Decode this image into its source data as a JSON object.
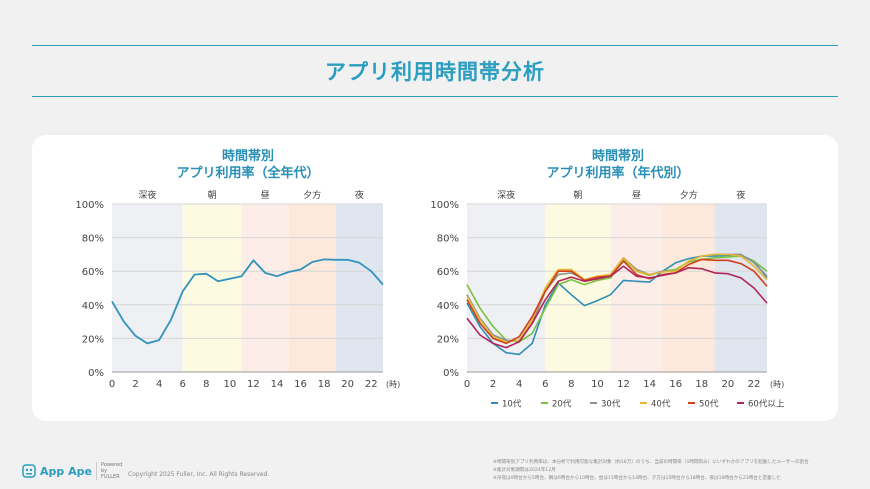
{
  "page_title": "アプリ利用時間帯分析",
  "chart_data": [
    {
      "type": "line",
      "title_line1": "時間帯別",
      "title_line2": "アプリ利用率（全年代）",
      "x": [
        0,
        1,
        2,
        3,
        4,
        5,
        6,
        7,
        8,
        9,
        10,
        11,
        12,
        13,
        14,
        15,
        16,
        17,
        18,
        19,
        20,
        21,
        22,
        23
      ],
      "x_ticks": [
        "0",
        "2",
        "4",
        "6",
        "8",
        "10",
        "12",
        "14",
        "16",
        "18",
        "20",
        "22"
      ],
      "x_unit": "(時)",
      "y_ticks": [
        "0%",
        "20%",
        "40%",
        "60%",
        "80%",
        "100%"
      ],
      "ylim": [
        0,
        100
      ],
      "grid": true,
      "bands": [
        {
          "label": "深夜",
          "from": 0,
          "to": 6,
          "color": "#eef0f3"
        },
        {
          "label": "朝",
          "from": 6,
          "to": 11,
          "color": "#fcfbe1"
        },
        {
          "label": "昼",
          "from": 11,
          "to": 15,
          "color": "#fcede8"
        },
        {
          "label": "夕方",
          "from": 15,
          "to": 19,
          "color": "#fde9db"
        },
        {
          "label": "夜",
          "from": 19,
          "to": 23,
          "color": "#dfe6ef"
        }
      ],
      "series": [
        {
          "color": "#2f93bd",
          "values": [
            42,
            30,
            21.5,
            17,
            19,
            31,
            48,
            58,
            58.5,
            54,
            55.5,
            57,
            66.5,
            59,
            57,
            59.5,
            61,
            65.5,
            67,
            66.8,
            66.8,
            65,
            60,
            52
          ]
        }
      ]
    },
    {
      "type": "line",
      "title_line1": "時間帯別",
      "title_line2": "アプリ利用率（年代別）",
      "x": [
        0,
        1,
        2,
        3,
        4,
        5,
        6,
        7,
        8,
        9,
        10,
        11,
        12,
        13,
        14,
        15,
        16,
        17,
        18,
        19,
        20,
        21,
        22,
        23
      ],
      "x_ticks": [
        "0",
        "2",
        "4",
        "6",
        "8",
        "10",
        "12",
        "14",
        "16",
        "18",
        "20",
        "22"
      ],
      "x_unit": "(時)",
      "y_ticks": [
        "0%",
        "20%",
        "40%",
        "60%",
        "80%",
        "100%"
      ],
      "ylim": [
        0,
        100
      ],
      "grid": true,
      "legend_position": "bottom",
      "bands": [
        {
          "label": "深夜",
          "from": 0,
          "to": 6,
          "color": "#eef0f3"
        },
        {
          "label": "朝",
          "from": 6,
          "to": 11,
          "color": "#fcfbe1"
        },
        {
          "label": "昼",
          "from": 11,
          "to": 15,
          "color": "#fcede8"
        },
        {
          "label": "夕方",
          "from": 15,
          "to": 19,
          "color": "#fde9db"
        },
        {
          "label": "夜",
          "from": 19,
          "to": 23,
          "color": "#dfe6ef"
        }
      ],
      "series": [
        {
          "name": "10代",
          "color": "#2f8fb8",
          "values": [
            41,
            27,
            17,
            11.5,
            10.5,
            17,
            40,
            53,
            46,
            39.5,
            42.5,
            46,
            54.5,
            54,
            53.5,
            60,
            65,
            67.5,
            69,
            69,
            69.5,
            69.5,
            66,
            56
          ]
        },
        {
          "name": "20代",
          "color": "#7ac142",
          "values": [
            52,
            38,
            27,
            19,
            18,
            23,
            38,
            52,
            55,
            52,
            54.5,
            56,
            67,
            60,
            57.5,
            60,
            61,
            65.5,
            67,
            68,
            68.5,
            69,
            66,
            60
          ]
        },
        {
          "name": "30代",
          "color": "#8d9299",
          "values": [
            46,
            32,
            22,
            19,
            18,
            29,
            48,
            58,
            59,
            55,
            56.5,
            58,
            68,
            61,
            58,
            60,
            60,
            66,
            69,
            70,
            70,
            70,
            65,
            57
          ]
        },
        {
          "name": "40代",
          "color": "#e6b832",
          "values": [
            45,
            31,
            21,
            18,
            19,
            31,
            50,
            61,
            61,
            55,
            57,
            58,
            68,
            60,
            58,
            59.5,
            60,
            66,
            69,
            70,
            70,
            69,
            63,
            55
          ]
        },
        {
          "name": "50代",
          "color": "#d2401a",
          "values": [
            43,
            29,
            20,
            17,
            21,
            33,
            48,
            60,
            60,
            54.5,
            56.5,
            57,
            66,
            58,
            55.5,
            58,
            59,
            64,
            67,
            66.5,
            66.5,
            64.5,
            60,
            51
          ]
        },
        {
          "name": "60代以上",
          "color": "#b0245a",
          "values": [
            32,
            22,
            17,
            14.5,
            18,
            29,
            43,
            54,
            56.5,
            54,
            55.5,
            57,
            63,
            57,
            56,
            57.5,
            59,
            62,
            61.5,
            59,
            58.5,
            56,
            50,
            41
          ]
        }
      ]
    }
  ],
  "footer": {
    "logo": "App Ape",
    "powered_by": "Powered by FULLER",
    "copyright": "Copyright 2025 Fuller, Inc. All Rights Reserved.",
    "notes": [
      "※時間帯別アプリ利用率は、本分析で利用可能な集計対象（約16万）のうち、当該の時間帯（1時間刻み）にいずれかのアプリを起動したユーザーの割合",
      "※集計対象期間は2024年12月",
      "※深夜は0時台から5時台、朝は6時台から10時台、昼は11時台から14時台、夕方は15時台から18時台、夜は19時台から23時台と定義した"
    ]
  }
}
